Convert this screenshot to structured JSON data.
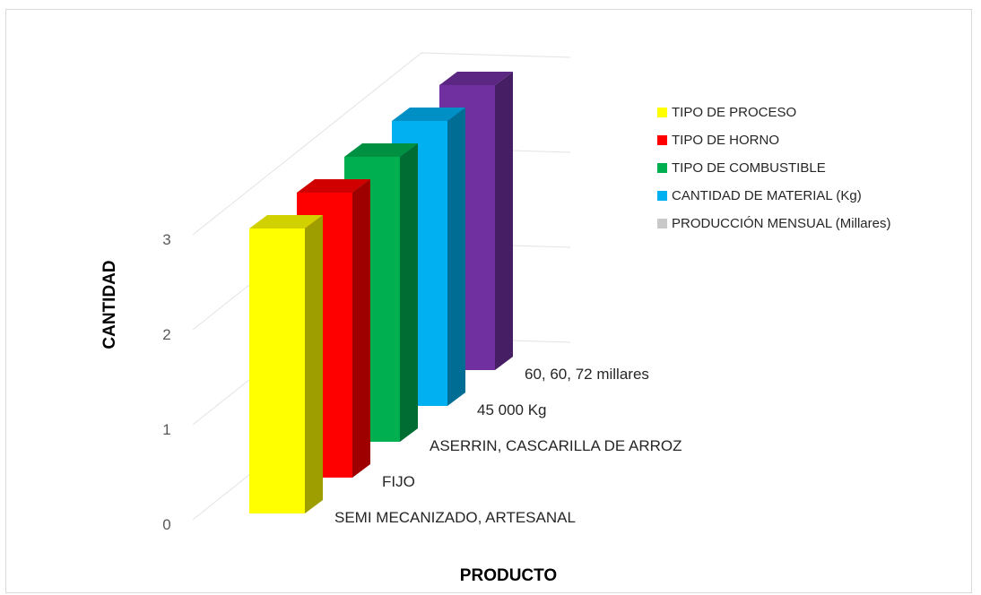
{
  "chart_data": {
    "type": "bar",
    "xlabel": "PRODUCTO",
    "ylabel": "CANTIDAD",
    "ylim": [
      0,
      3
    ],
    "yticks": [
      "0",
      "1",
      "2",
      "3"
    ],
    "grid": true,
    "legend_position": "right",
    "categories": [
      "SEMI MECANIZADO, ARTESANAL",
      "FIJO",
      "ASERRIN, CASCARILLA DE ARROZ",
      "45 000 Kg",
      "60, 60, 72 millares"
    ],
    "series": [
      {
        "name": "TIPO DE PROCESO",
        "values": [
          3,
          0,
          0,
          0,
          0
        ],
        "color": "#FFFF00"
      },
      {
        "name": "TIPO DE HORNO",
        "values": [
          0,
          3,
          0,
          0,
          0
        ],
        "color": "#FF0000"
      },
      {
        "name": "TIPO DE COMBUSTIBLE",
        "values": [
          0,
          0,
          3,
          0,
          0
        ],
        "color": "#00B050"
      },
      {
        "name": "CANTIDAD DE MATERIAL (Kg)",
        "values": [
          0,
          0,
          0,
          3,
          0
        ],
        "color": "#00B0F0"
      },
      {
        "name": "PRODUCCIÓN MENSUAL (Millares)",
        "values": [
          0,
          0,
          0,
          0,
          3
        ],
        "color": "#7030A0",
        "legend_color": "#C9C9C9"
      }
    ]
  }
}
